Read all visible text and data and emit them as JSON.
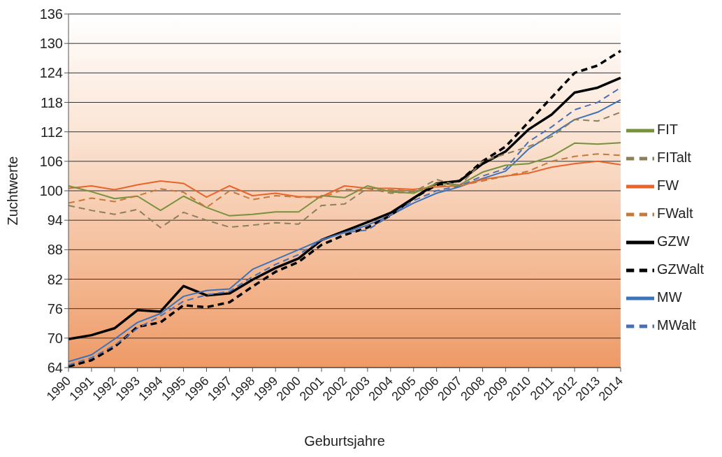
{
  "chart_data": {
    "type": "line",
    "xlabel": "Geburtsjahre",
    "ylabel": "Zuchtwerte",
    "categories": [
      "1990",
      "1991",
      "1992",
      "1993",
      "1994",
      "1995",
      "1996",
      "1997",
      "1998",
      "1999",
      "2000",
      "2001",
      "2002",
      "2003",
      "2004",
      "2005",
      "2006",
      "2007",
      "2008",
      "2009",
      "2010",
      "2011",
      "2012",
      "2013",
      "2014"
    ],
    "series": [
      {
        "name": "GZW",
        "color": "#000000",
        "line_style": "solid",
        "values": [
          69.8,
          70.6,
          72.0,
          75.7,
          75.4,
          80.6,
          78.7,
          79.1,
          81.9,
          84.3,
          86.2,
          90.0,
          91.8,
          93.6,
          95.5,
          98.5,
          101.5,
          102.0,
          105.5,
          108.0,
          112.5,
          115.5,
          120.0,
          121.0,
          123.0
        ]
      },
      {
        "name": "MW",
        "color": "#3b73b9",
        "line_style": "solid",
        "values": [
          65.2,
          66.6,
          69.8,
          73.2,
          75.0,
          78.5,
          79.7,
          80.0,
          84.0,
          86.0,
          88.0,
          90.0,
          91.5,
          93.0,
          95.0,
          97.5,
          99.5,
          100.8,
          102.5,
          104.0,
          108.5,
          111.5,
          114.5,
          116.0,
          118.5
        ]
      },
      {
        "name": "FW",
        "color": "#e8642c",
        "line_style": "solid",
        "values": [
          100.5,
          101.0,
          100.2,
          101.2,
          102.0,
          101.5,
          98.7,
          101.0,
          99.0,
          99.5,
          98.8,
          98.8,
          101.0,
          100.5,
          100.5,
          100.3,
          100.8,
          101.0,
          102.3,
          103.0,
          103.6,
          104.8,
          105.5,
          106.0,
          105.3
        ]
      },
      {
        "name": "FIT",
        "color": "#76923c",
        "line_style": "solid",
        "values": [
          101.0,
          99.8,
          98.4,
          98.9,
          96.0,
          98.9,
          96.6,
          94.9,
          95.2,
          95.7,
          95.7,
          99.0,
          98.6,
          101.0,
          99.8,
          99.5,
          101.5,
          101.2,
          103.8,
          105.2,
          105.5,
          107.0,
          109.7,
          109.5,
          109.8
        ]
      },
      {
        "name": "GZWalt",
        "color": "#000000",
        "line_style": "dashed",
        "values": [
          64.2,
          65.5,
          68.2,
          72.3,
          73.2,
          76.7,
          76.3,
          77.3,
          80.5,
          83.5,
          85.5,
          89.0,
          91.0,
          92.5,
          95.0,
          98.5,
          101.2,
          102.0,
          106.0,
          109.0,
          114.0,
          119.0,
          124.0,
          125.5,
          128.5
        ]
      },
      {
        "name": "MWalt",
        "color": "#4a6fb5",
        "line_style": "dashed",
        "values": [
          64.5,
          66.0,
          68.5,
          72.0,
          74.5,
          77.5,
          78.8,
          79.5,
          82.5,
          85.0,
          87.0,
          90.0,
          91.5,
          92.0,
          95.0,
          98.0,
          100.0,
          101.0,
          103.0,
          104.5,
          110.0,
          113.0,
          116.5,
          118.0,
          121.0
        ]
      },
      {
        "name": "FWalt",
        "color": "#c47a3c",
        "line_style": "dashed",
        "values": [
          97.5,
          98.5,
          97.8,
          99.0,
          100.4,
          99.7,
          96.6,
          100.0,
          98.2,
          99.0,
          98.7,
          98.6,
          100.3,
          100.0,
          100.2,
          100.0,
          101.0,
          101.0,
          102.0,
          103.0,
          104.0,
          106.0,
          107.0,
          107.5,
          107.2
        ]
      },
      {
        "name": "FITalt",
        "color": "#8c7f5a",
        "line_style": "dashed",
        "values": [
          97.0,
          96.0,
          95.2,
          96.2,
          92.5,
          95.6,
          94.0,
          92.6,
          93.0,
          93.5,
          93.2,
          97.0,
          97.3,
          100.5,
          99.5,
          99.8,
          102.3,
          101.0,
          106.0,
          107.5,
          109.0,
          111.0,
          114.5,
          114.2,
          116.0
        ]
      }
    ],
    "ylim": [
      64,
      136
    ],
    "yticks": [
      64,
      70,
      76,
      82,
      88,
      94,
      100,
      106,
      112,
      118,
      124,
      130,
      136
    ],
    "grid": "y",
    "legend": "right",
    "marker": "none"
  }
}
